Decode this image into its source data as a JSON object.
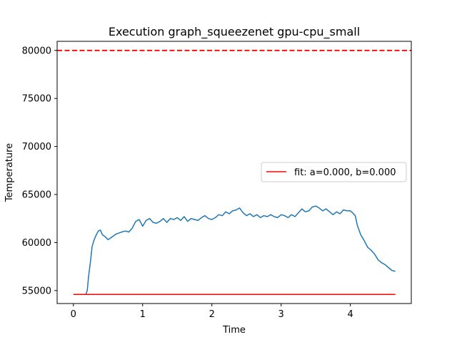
{
  "chart_data": {
    "type": "line",
    "title": "Execution graph_squeezenet gpu-cpu_small",
    "xlabel": "Time",
    "ylabel": "Temperature",
    "xlim": [
      -0.235,
      4.88
    ],
    "ylim": [
      53650,
      80950
    ],
    "xticks": [
      0,
      1,
      2,
      3,
      4
    ],
    "yticks": [
      55000,
      60000,
      65000,
      70000,
      75000,
      80000
    ],
    "grid": false,
    "legend_position": "center-right",
    "colors": {
      "temperature": "#1f77b4",
      "fit": "#ff0000",
      "threshold": "#ff0000"
    },
    "threshold": {
      "y": 80000,
      "style": "dashed"
    },
    "series": [
      {
        "style": "solid",
        "points": [
          [
            0.0,
            54600
          ],
          [
            0.18,
            54600
          ],
          [
            0.2,
            55000
          ],
          [
            0.22,
            56500
          ],
          [
            0.25,
            58200
          ],
          [
            0.27,
            59600
          ],
          [
            0.3,
            60300
          ],
          [
            0.33,
            60800
          ],
          [
            0.36,
            61200
          ],
          [
            0.39,
            61300
          ],
          [
            0.42,
            60800
          ],
          [
            0.46,
            60600
          ],
          [
            0.5,
            60300
          ],
          [
            0.54,
            60500
          ],
          [
            0.58,
            60700
          ],
          [
            0.62,
            60900
          ],
          [
            0.66,
            61000
          ],
          [
            0.7,
            61100
          ],
          [
            0.75,
            61200
          ],
          [
            0.8,
            61100
          ],
          [
            0.85,
            61500
          ],
          [
            0.9,
            62200
          ],
          [
            0.95,
            62400
          ],
          [
            1.0,
            61700
          ],
          [
            1.05,
            62300
          ],
          [
            1.1,
            62500
          ],
          [
            1.15,
            62100
          ],
          [
            1.2,
            62000
          ],
          [
            1.25,
            62200
          ],
          [
            1.3,
            62500
          ],
          [
            1.35,
            62100
          ],
          [
            1.4,
            62500
          ],
          [
            1.45,
            62400
          ],
          [
            1.5,
            62600
          ],
          [
            1.55,
            62300
          ],
          [
            1.6,
            62700
          ],
          [
            1.65,
            62200
          ],
          [
            1.7,
            62500
          ],
          [
            1.75,
            62400
          ],
          [
            1.8,
            62300
          ],
          [
            1.85,
            62600
          ],
          [
            1.9,
            62800
          ],
          [
            1.95,
            62500
          ],
          [
            2.0,
            62400
          ],
          [
            2.05,
            62600
          ],
          [
            2.1,
            62900
          ],
          [
            2.15,
            62800
          ],
          [
            2.2,
            63200
          ],
          [
            2.25,
            63000
          ],
          [
            2.3,
            63300
          ],
          [
            2.35,
            63400
          ],
          [
            2.4,
            63600
          ],
          [
            2.45,
            63100
          ],
          [
            2.5,
            62800
          ],
          [
            2.55,
            63000
          ],
          [
            2.6,
            62700
          ],
          [
            2.65,
            62900
          ],
          [
            2.7,
            62600
          ],
          [
            2.75,
            62800
          ],
          [
            2.8,
            62700
          ],
          [
            2.85,
            62900
          ],
          [
            2.9,
            62700
          ],
          [
            2.95,
            62600
          ],
          [
            3.0,
            62900
          ],
          [
            3.05,
            62800
          ],
          [
            3.1,
            62600
          ],
          [
            3.15,
            62900
          ],
          [
            3.2,
            62700
          ],
          [
            3.25,
            63100
          ],
          [
            3.3,
            63500
          ],
          [
            3.35,
            63200
          ],
          [
            3.4,
            63300
          ],
          [
            3.45,
            63700
          ],
          [
            3.5,
            63800
          ],
          [
            3.55,
            63600
          ],
          [
            3.6,
            63300
          ],
          [
            3.65,
            63500
          ],
          [
            3.7,
            63200
          ],
          [
            3.75,
            62900
          ],
          [
            3.8,
            63200
          ],
          [
            3.85,
            63000
          ],
          [
            3.9,
            63400
          ],
          [
            3.95,
            63300
          ],
          [
            4.0,
            63300
          ],
          [
            4.03,
            63100
          ],
          [
            4.07,
            62800
          ],
          [
            4.1,
            61800
          ],
          [
            4.15,
            60800
          ],
          [
            4.2,
            60200
          ],
          [
            4.25,
            59500
          ],
          [
            4.3,
            59200
          ],
          [
            4.35,
            58800
          ],
          [
            4.4,
            58200
          ],
          [
            4.45,
            57900
          ],
          [
            4.5,
            57700
          ],
          [
            4.55,
            57400
          ],
          [
            4.6,
            57100
          ],
          [
            4.65,
            57000
          ]
        ]
      },
      {
        "name": "fit: a=0.000, b=0.000",
        "style": "solid",
        "points": [
          [
            0.0,
            54600
          ],
          [
            4.65,
            54600
          ]
        ]
      }
    ]
  }
}
